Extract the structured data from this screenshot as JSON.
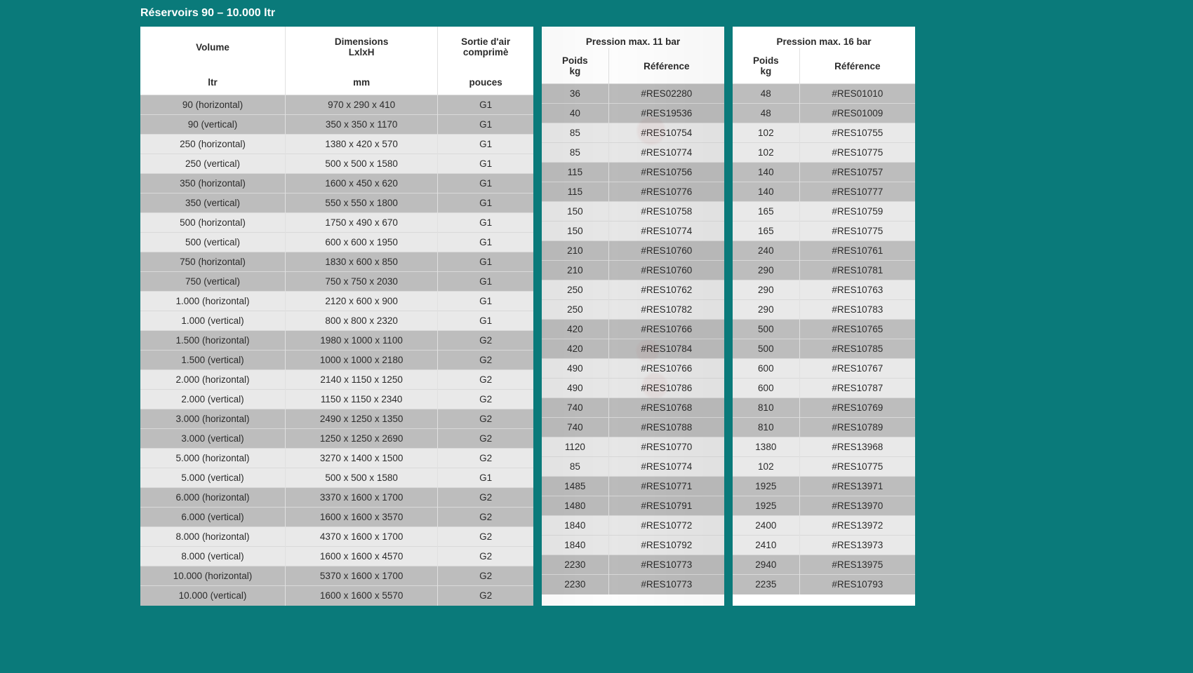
{
  "colors": {
    "page_bg": "#0a7a7a",
    "header_text": "#ffffff",
    "cell_text": "#2b2b2b",
    "row_light": "#e9e9e9",
    "row_dark": "#bdbdbd",
    "border": "#d9d9d9"
  },
  "title": "Réservoirs 90 – 10.000 ltr",
  "columns": {
    "main": {
      "volume": {
        "label": "Volume",
        "unit": "ltr"
      },
      "dimensions": {
        "label": "Dimensions",
        "sub": "LxlxH",
        "unit": "mm"
      },
      "outlet": {
        "label": "Sortie d'air",
        "sub": "comprimè",
        "unit": "pouces"
      }
    },
    "p11": {
      "group": "Pression max. 11 bar",
      "weight": {
        "label": "Poids",
        "unit": "kg"
      },
      "ref": {
        "label": "Référence"
      }
    },
    "p16": {
      "group": "Pression max. 16 bar",
      "weight": {
        "label": "Poids",
        "unit": "kg"
      },
      "ref": {
        "label": "Référence"
      }
    }
  },
  "rows": [
    {
      "volume": "90 (horizontal)",
      "dims": "970 x 290 x 410",
      "outlet": "G1",
      "w11": "36",
      "ref11": "#RES02280",
      "w16": "48",
      "ref16": "#RES01010"
    },
    {
      "volume": "90 (vertical)",
      "dims": "350 x 350 x 1170",
      "outlet": "G1",
      "w11": "40",
      "ref11": "#RES19536",
      "w16": "48",
      "ref16": "#RES01009"
    },
    {
      "volume": "250 (horizontal)",
      "dims": "1380 x 420 x 570",
      "outlet": "G1",
      "w11": "85",
      "ref11": "#RES10754",
      "w16": "102",
      "ref16": "#RES10755"
    },
    {
      "volume": "250 (vertical)",
      "dims": "500 x 500 x 1580",
      "outlet": "G1",
      "w11": "85",
      "ref11": "#RES10774",
      "w16": "102",
      "ref16": "#RES10775"
    },
    {
      "volume": "350 (horizontal)",
      "dims": "1600 x 450 x 620",
      "outlet": "G1",
      "w11": "115",
      "ref11": "#RES10756",
      "w16": "140",
      "ref16": "#RES10757"
    },
    {
      "volume": "350 (vertical)",
      "dims": "550 x 550 x 1800",
      "outlet": "G1",
      "w11": "115",
      "ref11": "#RES10776",
      "w16": "140",
      "ref16": "#RES10777"
    },
    {
      "volume": "500 (horizontal)",
      "dims": "1750 x 490 x 670",
      "outlet": "G1",
      "w11": "150",
      "ref11": "#RES10758",
      "w16": "165",
      "ref16": "#RES10759"
    },
    {
      "volume": "500 (vertical)",
      "dims": "600 x 600 x 1950",
      "outlet": "G1",
      "w11": "150",
      "ref11": "#RES10774",
      "w16": "165",
      "ref16": "#RES10775"
    },
    {
      "volume": "750 (horizontal)",
      "dims": "1830 x 600 x 850",
      "outlet": "G1",
      "w11": "210",
      "ref11": "#RES10760",
      "w16": "240",
      "ref16": "#RES10761"
    },
    {
      "volume": "750 (vertical)",
      "dims": "750 x 750 x 2030",
      "outlet": "G1",
      "w11": "210",
      "ref11": "#RES10760",
      "w16": "290",
      "ref16": "#RES10781"
    },
    {
      "volume": "1.000 (horizontal)",
      "dims": "2120 x 600 x 900",
      "outlet": "G1",
      "w11": "250",
      "ref11": "#RES10762",
      "w16": "290",
      "ref16": "#RES10763"
    },
    {
      "volume": "1.000 (vertical)",
      "dims": "800 x 800 x 2320",
      "outlet": "G1",
      "w11": "250",
      "ref11": "#RES10782",
      "w16": "290",
      "ref16": "#RES10783"
    },
    {
      "volume": "1.500 (horizontal)",
      "dims": "1980 x 1000 x 1100",
      "outlet": "G2",
      "w11": "420",
      "ref11": "#RES10766",
      "w16": "500",
      "ref16": "#RES10765"
    },
    {
      "volume": "1.500 (vertical)",
      "dims": "1000 x 1000 x 2180",
      "outlet": "G2",
      "w11": "420",
      "ref11": "#RES10784",
      "w16": "500",
      "ref16": "#RES10785"
    },
    {
      "volume": "2.000 (horizontal)",
      "dims": "2140 x 1150 x 1250",
      "outlet": "G2",
      "w11": "490",
      "ref11": "#RES10766",
      "w16": "600",
      "ref16": "#RES10767"
    },
    {
      "volume": "2.000 (vertical)",
      "dims": "1150 x 1150 x 2340",
      "outlet": "G2",
      "w11": "490",
      "ref11": "#RES10786",
      "w16": "600",
      "ref16": "#RES10787"
    },
    {
      "volume": "3.000 (horizontal)",
      "dims": "2490 x 1250 x 1350",
      "outlet": "G2",
      "w11": "740",
      "ref11": "#RES10768",
      "w16": "810",
      "ref16": "#RES10769"
    },
    {
      "volume": "3.000 (vertical)",
      "dims": "1250 x 1250 x 2690",
      "outlet": "G2",
      "w11": "740",
      "ref11": "#RES10788",
      "w16": "810",
      "ref16": "#RES10789"
    },
    {
      "volume": "5.000 (horizontal)",
      "dims": "3270 x 1400 x 1500",
      "outlet": "G2",
      "w11": "1120",
      "ref11": "#RES10770",
      "w16": "1380",
      "ref16": "#RES13968"
    },
    {
      "volume": "5.000 (vertical)",
      "dims": "500 x 500 x 1580",
      "outlet": "G1",
      "w11": "85",
      "ref11": "#RES10774",
      "w16": "102",
      "ref16": "#RES10775"
    },
    {
      "volume": "6.000 (horizontal)",
      "dims": "3370 x 1600 x 1700",
      "outlet": "G2",
      "w11": "1485",
      "ref11": "#RES10771",
      "w16": "1925",
      "ref16": "#RES13971"
    },
    {
      "volume": "6.000 (vertical)",
      "dims": "1600 x 1600 x 3570",
      "outlet": "G2",
      "w11": "1480",
      "ref11": "#RES10791",
      "w16": "1925",
      "ref16": "#RES13970"
    },
    {
      "volume": "8.000 (horizontal)",
      "dims": "4370 x 1600 x 1700",
      "outlet": "G2",
      "w11": "1840",
      "ref11": "#RES10772",
      "w16": "2400",
      "ref16": "#RES13972"
    },
    {
      "volume": "8.000 (vertical)",
      "dims": "1600 x 1600 x 4570",
      "outlet": "G2",
      "w11": "1840",
      "ref11": "#RES10792",
      "w16": "2410",
      "ref16": "#RES13973"
    },
    {
      "volume": "10.000 (horizontal)",
      "dims": "5370 x 1600 x 1700",
      "outlet": "G2",
      "w11": "2230",
      "ref11": "#RES10773",
      "w16": "2940",
      "ref16": "#RES13975"
    },
    {
      "volume": "10.000 (vertical)",
      "dims": "1600 x 1600 x 5570",
      "outlet": "G2",
      "w11": "2230",
      "ref11": "#RES10773",
      "w16": "2235",
      "ref16": "#RES10793"
    }
  ]
}
